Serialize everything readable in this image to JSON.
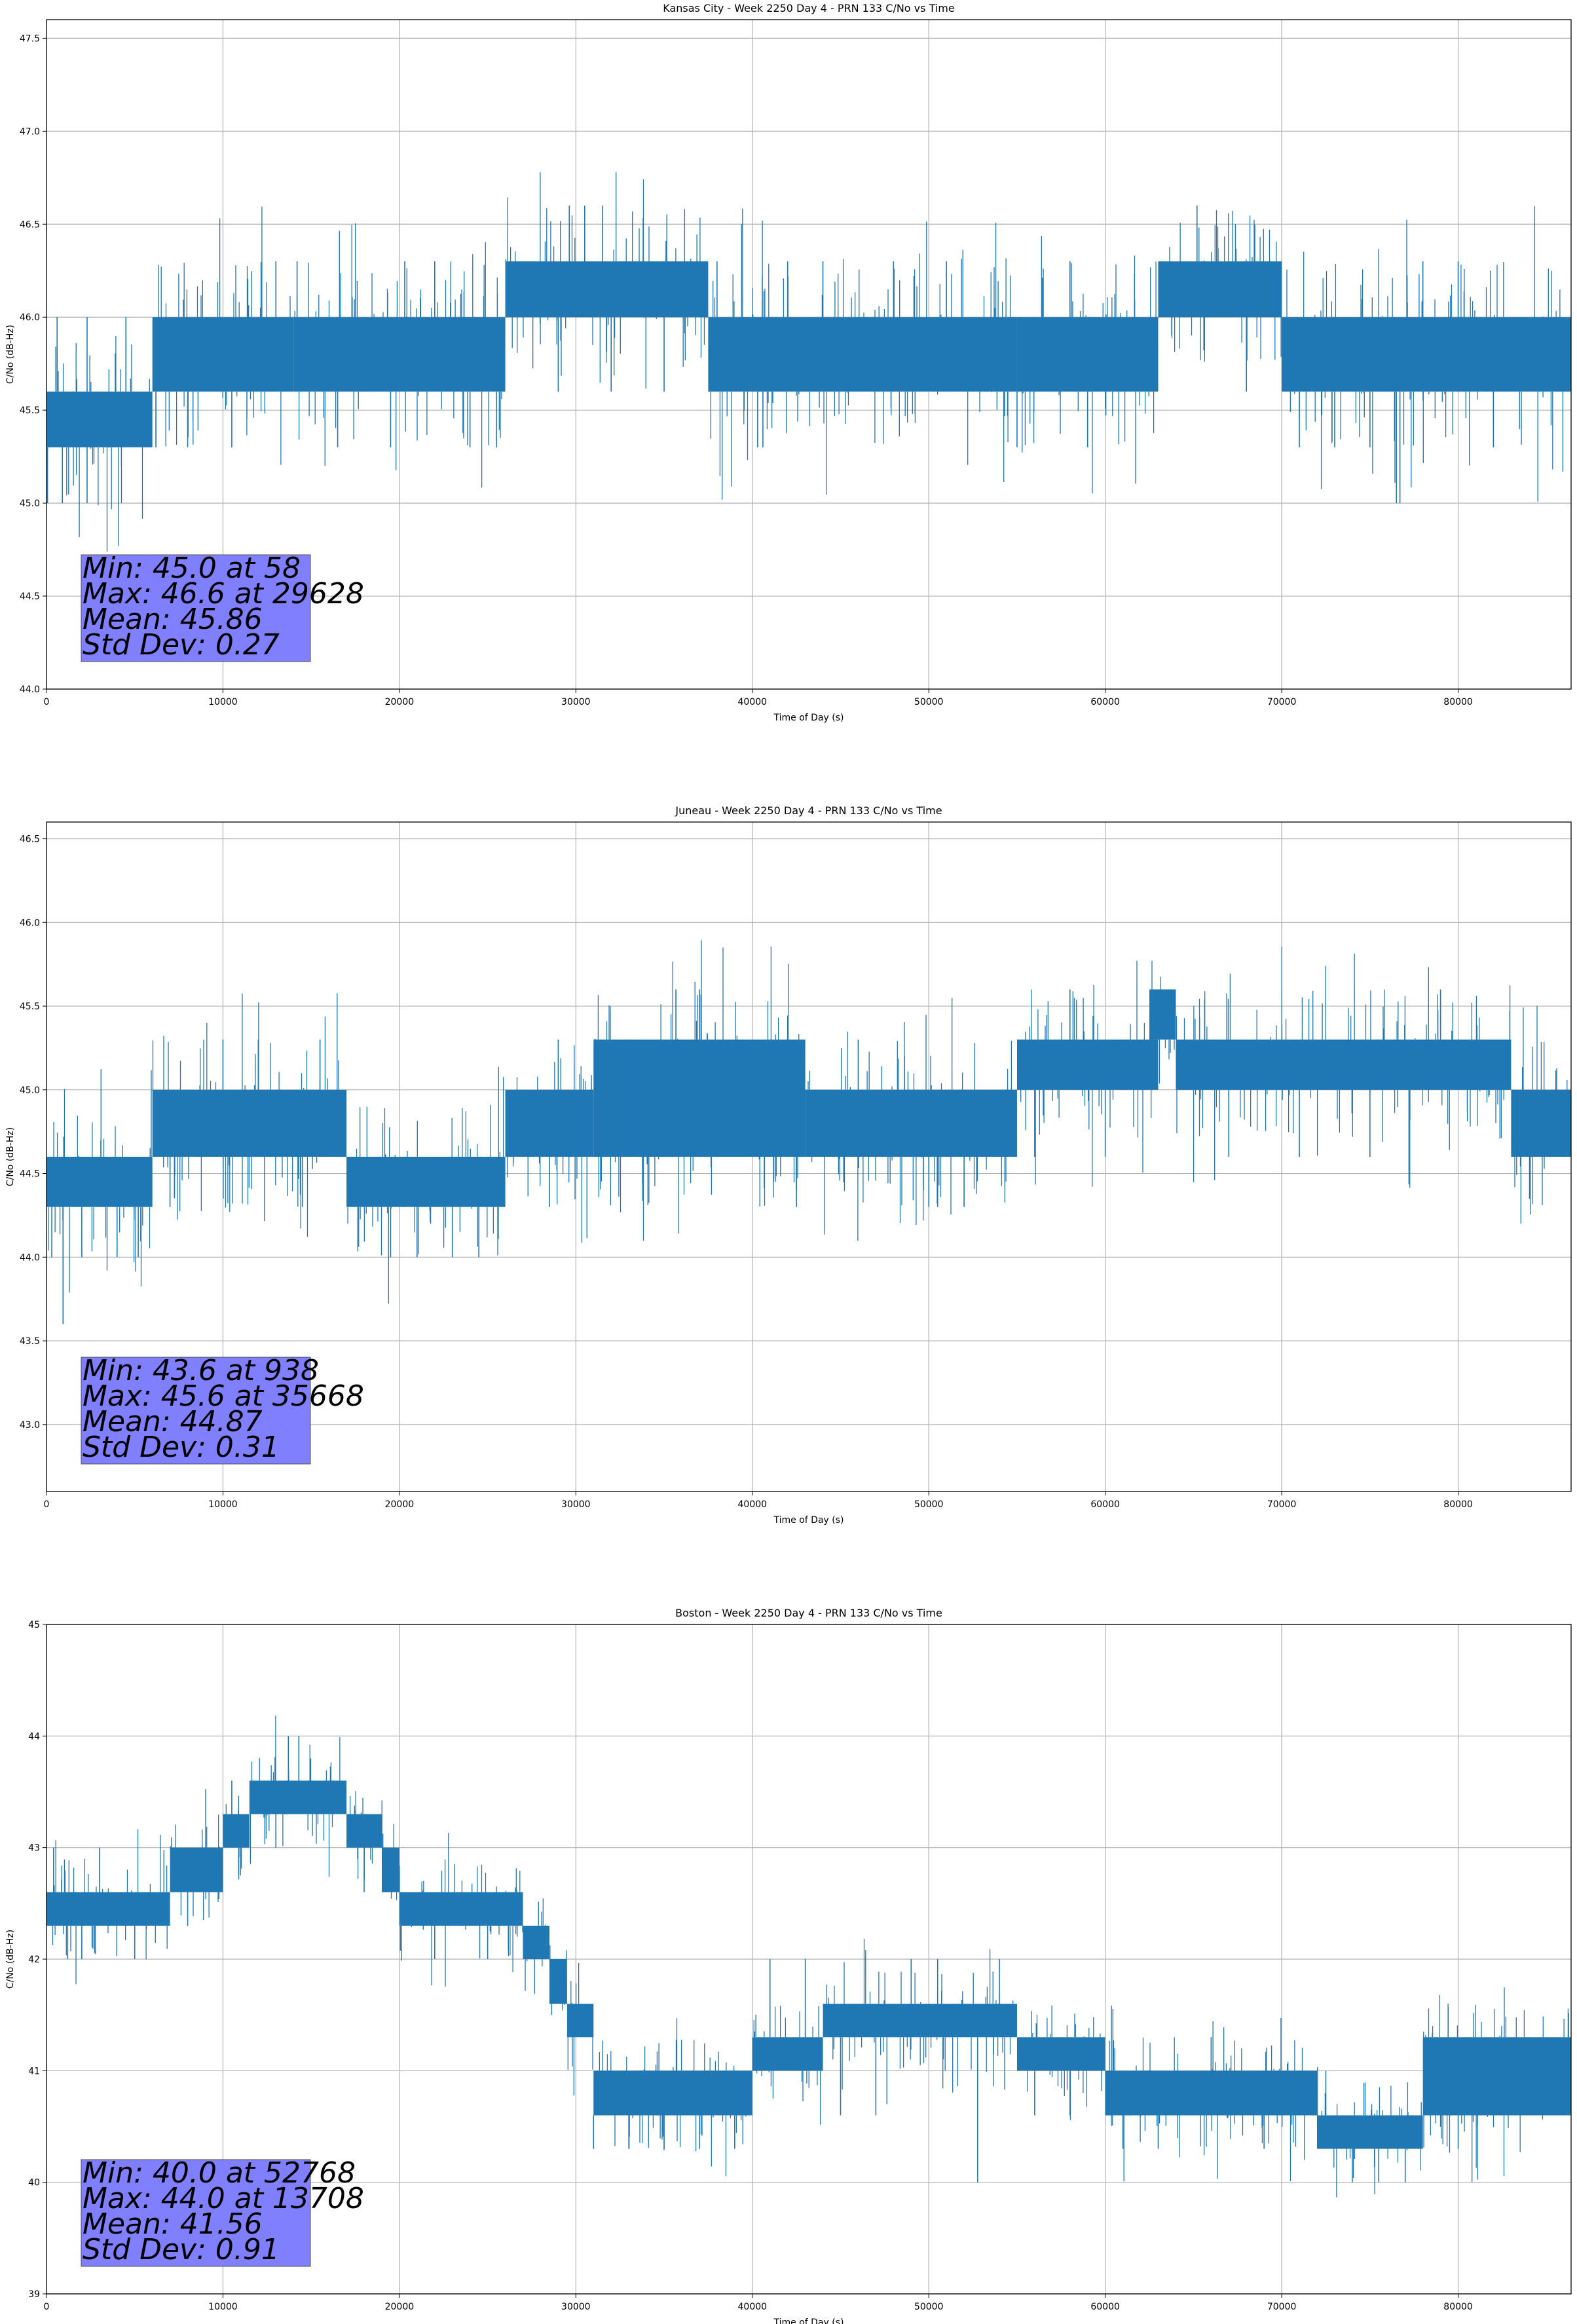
{
  "colors": {
    "series": "#1f77b4",
    "grid": "#b0b0b0",
    "stats_box": "#8080ff",
    "axes": "#000000"
  },
  "chart_data": [
    {
      "type": "line",
      "title": "Kansas City - Week 2250 Day 4 - PRN 133 C/No vs Time",
      "xlabel": "Time of Day (s)",
      "ylabel": "C/No (dB-Hz)",
      "xlim": [
        0,
        86400
      ],
      "ylim": [
        44.0,
        47.6
      ],
      "xticks": [
        0,
        10000,
        20000,
        30000,
        40000,
        50000,
        60000,
        70000,
        80000
      ],
      "yticks": [
        44.0,
        44.5,
        45.0,
        45.5,
        46.0,
        46.5,
        47.0,
        47.5
      ],
      "ytick_decimals": 1,
      "grid": true,
      "stats": [
        "Min: 45.0 at 58",
        "Max: 46.6 at 29628",
        "Mean: 45.86",
        "Std Dev: 0.27"
      ],
      "series": [
        {
          "name": "C/No",
          "segments": [
            {
              "x": [
                0,
                6000
              ],
              "low": 45.3,
              "high": 45.6
            },
            {
              "x": [
                6000,
                14000
              ],
              "low": 45.6,
              "high": 46.0
            },
            {
              "x": [
                14000,
                26000
              ],
              "low": 45.6,
              "high": 46.0
            },
            {
              "x": [
                26000,
                37500
              ],
              "low": 46.0,
              "high": 46.3
            },
            {
              "x": [
                37500,
                55000
              ],
              "low": 45.6,
              "high": 46.0
            },
            {
              "x": [
                55000,
                63000
              ],
              "low": 45.6,
              "high": 46.0
            },
            {
              "x": [
                63000,
                70000
              ],
              "low": 46.0,
              "high": 46.3
            },
            {
              "x": [
                70000,
                86400
              ],
              "low": 45.6,
              "high": 46.0
            }
          ],
          "spikes": [
            {
              "x": 58,
              "y": 45.0
            },
            {
              "x": 600,
              "y": 46.0
            },
            {
              "x": 900,
              "y": 45.0
            },
            {
              "x": 2300,
              "y": 46.0
            },
            {
              "x": 2300,
              "y": 45.0
            },
            {
              "x": 4500,
              "y": 46.0
            },
            {
              "x": 6200,
              "y": 45.3
            },
            {
              "x": 8000,
              "y": 45.3
            },
            {
              "x": 10500,
              "y": 45.3
            },
            {
              "x": 13000,
              "y": 46.3
            },
            {
              "x": 14200,
              "y": 46.3
            },
            {
              "x": 16500,
              "y": 45.3
            },
            {
              "x": 19500,
              "y": 45.3
            },
            {
              "x": 20300,
              "y": 46.3
            },
            {
              "x": 22000,
              "y": 46.3
            },
            {
              "x": 24000,
              "y": 45.3
            },
            {
              "x": 25500,
              "y": 45.3
            },
            {
              "x": 27000,
              "y": 46.3
            },
            {
              "x": 29000,
              "y": 45.6
            },
            {
              "x": 29628,
              "y": 46.6
            },
            {
              "x": 30500,
              "y": 46.6
            },
            {
              "x": 31500,
              "y": 46.6
            },
            {
              "x": 32000,
              "y": 45.6
            },
            {
              "x": 35000,
              "y": 45.6
            },
            {
              "x": 38000,
              "y": 46.3
            },
            {
              "x": 40300,
              "y": 45.3
            },
            {
              "x": 40600,
              "y": 45.3
            },
            {
              "x": 42000,
              "y": 46.3
            },
            {
              "x": 44000,
              "y": 46.3
            },
            {
              "x": 46000,
              "y": 45.6
            },
            {
              "x": 48000,
              "y": 46.3
            },
            {
              "x": 51000,
              "y": 46.3
            },
            {
              "x": 55000,
              "y": 45.3
            },
            {
              "x": 59000,
              "y": 45.3
            },
            {
              "x": 58000,
              "y": 46.3
            },
            {
              "x": 65200,
              "y": 46.6
            },
            {
              "x": 68000,
              "y": 45.6
            },
            {
              "x": 71000,
              "y": 45.3
            },
            {
              "x": 73000,
              "y": 45.3
            },
            {
              "x": 75000,
              "y": 45.3
            },
            {
              "x": 76500,
              "y": 45.0
            },
            {
              "x": 76700,
              "y": 45.0
            },
            {
              "x": 78000,
              "y": 46.3
            },
            {
              "x": 80000,
              "y": 46.3
            },
            {
              "x": 82000,
              "y": 45.3
            }
          ]
        }
      ]
    },
    {
      "type": "line",
      "title": "Juneau - Week 2250 Day 4 - PRN 133 C/No vs Time",
      "xlabel": "Time of Day (s)",
      "ylabel": "C/No (dB-Hz)",
      "xlim": [
        0,
        86400
      ],
      "ylim": [
        42.6,
        46.6
      ],
      "xticks": [
        0,
        10000,
        20000,
        30000,
        40000,
        50000,
        60000,
        70000,
        80000
      ],
      "yticks": [
        43.0,
        43.5,
        44.0,
        44.5,
        45.0,
        45.5,
        46.0,
        46.5
      ],
      "ytick_decimals": 1,
      "grid": true,
      "stats": [
        "Min: 43.6 at 938",
        "Max: 45.6 at 35668",
        "Mean: 44.87",
        "Std Dev: 0.31"
      ],
      "series": [
        {
          "name": "C/No",
          "segments": [
            {
              "x": [
                0,
                6000
              ],
              "low": 44.3,
              "high": 44.6
            },
            {
              "x": [
                6000,
                17000
              ],
              "low": 44.6,
              "high": 45.0
            },
            {
              "x": [
                17000,
                26000
              ],
              "low": 44.3,
              "high": 44.6
            },
            {
              "x": [
                26000,
                31000
              ],
              "low": 44.6,
              "high": 45.0
            },
            {
              "x": [
                31000,
                43000
              ],
              "low": 44.6,
              "high": 45.3
            },
            {
              "x": [
                43000,
                55000
              ],
              "low": 44.6,
              "high": 45.0
            },
            {
              "x": [
                55000,
                63000
              ],
              "low": 45.0,
              "high": 45.3
            },
            {
              "x": [
                62500,
                64000
              ],
              "low": 45.3,
              "high": 45.6
            },
            {
              "x": [
                64000,
                83000
              ],
              "low": 45.0,
              "high": 45.3
            },
            {
              "x": [
                83000,
                86400
              ],
              "low": 44.6,
              "high": 45.0
            }
          ],
          "spikes": [
            {
              "x": 300,
              "y": 44.0
            },
            {
              "x": 938,
              "y": 43.6
            },
            {
              "x": 2000,
              "y": 44.0
            },
            {
              "x": 4000,
              "y": 44.0
            },
            {
              "x": 5200,
              "y": 44.0
            },
            {
              "x": 7000,
              "y": 44.3
            },
            {
              "x": 10000,
              "y": 45.3
            },
            {
              "x": 12000,
              "y": 45.3
            },
            {
              "x": 14500,
              "y": 44.3
            },
            {
              "x": 15500,
              "y": 45.3
            },
            {
              "x": 19500,
              "y": 44.0
            },
            {
              "x": 21000,
              "y": 44.0
            },
            {
              "x": 23000,
              "y": 44.0
            },
            {
              "x": 24500,
              "y": 44.0
            },
            {
              "x": 28500,
              "y": 44.3
            },
            {
              "x": 29000,
              "y": 45.3
            },
            {
              "x": 33000,
              "y": 45.3
            },
            {
              "x": 35668,
              "y": 45.6
            },
            {
              "x": 37000,
              "y": 45.6
            },
            {
              "x": 38000,
              "y": 44.6
            },
            {
              "x": 42500,
              "y": 44.3
            },
            {
              "x": 46000,
              "y": 45.3
            },
            {
              "x": 50000,
              "y": 44.3
            },
            {
              "x": 50500,
              "y": 44.3
            },
            {
              "x": 52000,
              "y": 44.3
            },
            {
              "x": 56000,
              "y": 44.6
            },
            {
              "x": 58000,
              "y": 45.6
            },
            {
              "x": 60000,
              "y": 44.6
            },
            {
              "x": 67000,
              "y": 44.6
            },
            {
              "x": 71000,
              "y": 44.6
            },
            {
              "x": 75000,
              "y": 44.6
            },
            {
              "x": 79000,
              "y": 45.6
            }
          ]
        }
      ]
    },
    {
      "type": "line",
      "title": "Boston - Week 2250 Day 4 - PRN 133 C/No vs Time",
      "xlabel": "Time of Day (s)",
      "ylabel": "C/No (dB-Hz)",
      "xlim": [
        0,
        86400
      ],
      "ylim": [
        39.0,
        45.0
      ],
      "xticks": [
        0,
        10000,
        20000,
        30000,
        40000,
        50000,
        60000,
        70000,
        80000
      ],
      "yticks": [
        39,
        40,
        41,
        42,
        43,
        44,
        45
      ],
      "ytick_decimals": 0,
      "grid": true,
      "stats": [
        "Min: 40.0 at 52768",
        "Max: 44.0 at 13708",
        "Mean: 41.56",
        "Std Dev: 0.91"
      ],
      "series": [
        {
          "name": "C/No",
          "segments": [
            {
              "x": [
                0,
                7000
              ],
              "low": 42.3,
              "high": 42.6
            },
            {
              "x": [
                7000,
                10000
              ],
              "low": 42.6,
              "high": 43.0
            },
            {
              "x": [
                10000,
                11500
              ],
              "low": 43.0,
              "high": 43.3
            },
            {
              "x": [
                11500,
                17000
              ],
              "low": 43.3,
              "high": 43.6
            },
            {
              "x": [
                17000,
                19000
              ],
              "low": 43.0,
              "high": 43.3
            },
            {
              "x": [
                19000,
                20000
              ],
              "low": 42.6,
              "high": 43.0
            },
            {
              "x": [
                20000,
                27000
              ],
              "low": 42.3,
              "high": 42.6
            },
            {
              "x": [
                27000,
                28500
              ],
              "low": 42.0,
              "high": 42.3
            },
            {
              "x": [
                28500,
                29500
              ],
              "low": 41.6,
              "high": 42.0
            },
            {
              "x": [
                29500,
                31000
              ],
              "low": 41.3,
              "high": 41.6
            },
            {
              "x": [
                31000,
                40000
              ],
              "low": 40.6,
              "high": 41.0
            },
            {
              "x": [
                40000,
                44000
              ],
              "low": 41.0,
              "high": 41.3
            },
            {
              "x": [
                44000,
                55000
              ],
              "low": 41.3,
              "high": 41.6
            },
            {
              "x": [
                55000,
                60000
              ],
              "low": 41.0,
              "high": 41.3
            },
            {
              "x": [
                60000,
                72000
              ],
              "low": 40.6,
              "high": 41.0
            },
            {
              "x": [
                72000,
                78000
              ],
              "low": 40.3,
              "high": 40.6
            },
            {
              "x": [
                78000,
                86400
              ],
              "low": 40.6,
              "high": 41.3
            }
          ],
          "spikes": [
            {
              "x": 400,
              "y": 43.0
            },
            {
              "x": 1200,
              "y": 42.0
            },
            {
              "x": 2000,
              "y": 42.0
            },
            {
              "x": 3000,
              "y": 43.0
            },
            {
              "x": 5000,
              "y": 42.0
            },
            {
              "x": 8000,
              "y": 42.3
            },
            {
              "x": 9500,
              "y": 42.6
            },
            {
              "x": 10500,
              "y": 43.6
            },
            {
              "x": 13708,
              "y": 44.0
            },
            {
              "x": 14300,
              "y": 44.0
            },
            {
              "x": 13000,
              "y": 43.0
            },
            {
              "x": 18000,
              "y": 42.6
            },
            {
              "x": 22000,
              "y": 42.0
            },
            {
              "x": 25000,
              "y": 42.0
            },
            {
              "x": 26500,
              "y": 42.6
            },
            {
              "x": 31000,
              "y": 40.3
            },
            {
              "x": 33000,
              "y": 40.3
            },
            {
              "x": 35000,
              "y": 40.3
            },
            {
              "x": 37000,
              "y": 40.3
            },
            {
              "x": 39000,
              "y": 40.3
            },
            {
              "x": 41000,
              "y": 42.0
            },
            {
              "x": 43000,
              "y": 42.0
            },
            {
              "x": 45000,
              "y": 40.6
            },
            {
              "x": 47000,
              "y": 40.6
            },
            {
              "x": 49000,
              "y": 42.0
            },
            {
              "x": 50500,
              "y": 42.0
            },
            {
              "x": 52768,
              "y": 40.0
            },
            {
              "x": 54000,
              "y": 42.0
            },
            {
              "x": 56000,
              "y": 40.6
            },
            {
              "x": 58000,
              "y": 40.6
            },
            {
              "x": 61000,
              "y": 40.3
            },
            {
              "x": 63000,
              "y": 40.3
            },
            {
              "x": 66000,
              "y": 41.3
            },
            {
              "x": 69000,
              "y": 40.3
            },
            {
              "x": 72500,
              "y": 41.0
            },
            {
              "x": 74000,
              "y": 40.0
            },
            {
              "x": 75500,
              "y": 40.0
            },
            {
              "x": 77000,
              "y": 40.0
            },
            {
              "x": 80000,
              "y": 40.3
            },
            {
              "x": 84000,
              "y": 41.3
            }
          ]
        }
      ]
    }
  ]
}
